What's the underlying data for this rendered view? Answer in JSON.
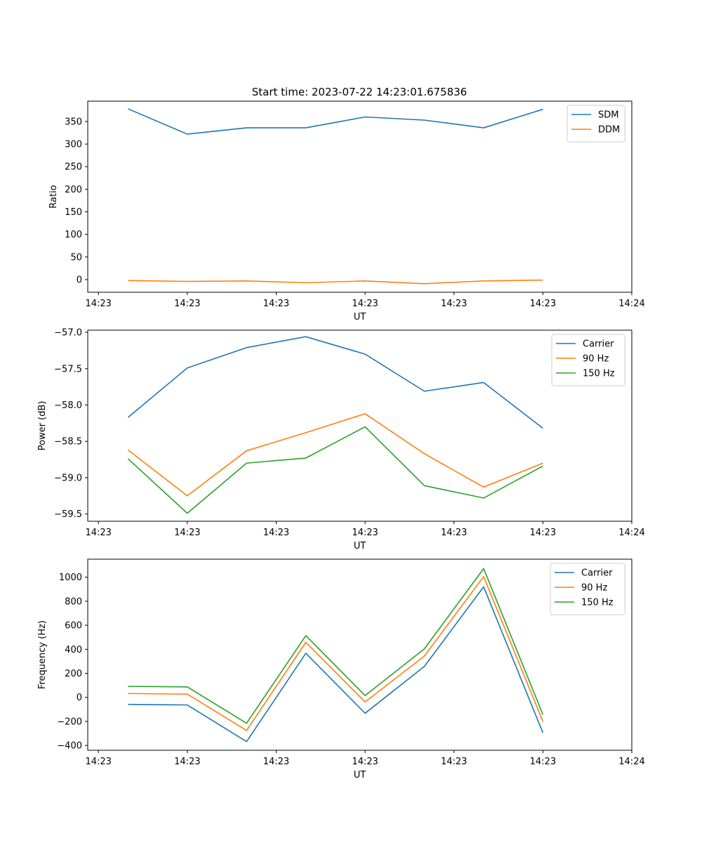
{
  "figure_title": "Start time: 2023-07-22 14:23:01.675836",
  "colors": {
    "series1": "#1f77b4",
    "series2": "#ff7f0e",
    "series3": "#2ca02c"
  },
  "chart_data": [
    {
      "type": "line",
      "title": "Start time: 2023-07-22 14:23:01.675836",
      "xlabel": "UT",
      "ylabel": "Ratio",
      "x_tick_labels": [
        "14:23",
        "14:23",
        "14:23",
        "14:23",
        "14:23",
        "14:23",
        "14:24"
      ],
      "x": [
        1,
        2,
        3,
        4,
        5,
        6,
        7,
        8
      ],
      "xlim": [
        0.32,
        9.5
      ],
      "ylim": [
        -28,
        395
      ],
      "y_ticks": [
        0,
        50,
        100,
        150,
        200,
        250,
        300,
        350
      ],
      "legend": "upper right",
      "series": [
        {
          "name": "SDM",
          "color": "#1f77b4",
          "values": [
            378,
            322,
            336,
            336,
            360,
            353,
            336,
            377
          ]
        },
        {
          "name": "DDM",
          "color": "#ff7f0e",
          "values": [
            -2,
            -4,
            -3,
            -7,
            -3,
            -9,
            -3,
            -1
          ]
        }
      ]
    },
    {
      "type": "line",
      "xlabel": "UT",
      "ylabel": "Power (dB)",
      "x_tick_labels": [
        "14:23",
        "14:23",
        "14:23",
        "14:23",
        "14:23",
        "14:23",
        "14:24"
      ],
      "x": [
        1,
        2,
        3,
        4,
        5,
        6,
        7,
        8
      ],
      "xlim": [
        0.32,
        9.5
      ],
      "ylim": [
        -59.6,
        -56.97
      ],
      "y_ticks": [
        -59.5,
        -59.0,
        -58.5,
        -58.0,
        -57.5,
        -57.0
      ],
      "legend": "upper right",
      "series": [
        {
          "name": "Carrier",
          "color": "#1f77b4",
          "values": [
            -58.17,
            -57.49,
            -57.21,
            -57.06,
            -57.3,
            -57.81,
            -57.69,
            -58.32
          ]
        },
        {
          "name": "90 Hz",
          "color": "#ff7f0e",
          "values": [
            -58.62,
            -59.25,
            -58.63,
            -58.38,
            -58.12,
            -58.67,
            -59.13,
            -58.8
          ]
        },
        {
          "name": "150 Hz",
          "color": "#2ca02c",
          "values": [
            -58.74,
            -59.49,
            -58.8,
            -58.73,
            -58.3,
            -59.11,
            -59.28,
            -58.84
          ]
        }
      ]
    },
    {
      "type": "line",
      "xlabel": "UT",
      "ylabel": "Frequency (Hz)",
      "x_tick_labels": [
        "14:23",
        "14:23",
        "14:23",
        "14:23",
        "14:23",
        "14:23",
        "14:24"
      ],
      "x": [
        1,
        2,
        3,
        4,
        5,
        6,
        7,
        8
      ],
      "xlim": [
        0.32,
        9.5
      ],
      "ylim": [
        -440,
        1150
      ],
      "y_ticks": [
        -400,
        -200,
        0,
        200,
        400,
        600,
        800,
        1000
      ],
      "legend": "upper right",
      "series": [
        {
          "name": "Carrier",
          "color": "#1f77b4",
          "values": [
            -58,
            -63,
            -368,
            367,
            -132,
            258,
            920,
            -295
          ]
        },
        {
          "name": "90 Hz",
          "color": "#ff7f0e",
          "values": [
            32,
            27,
            -275,
            458,
            -38,
            344,
            1005,
            -200
          ]
        },
        {
          "name": "150 Hz",
          "color": "#2ca02c",
          "values": [
            92,
            87,
            -215,
            514,
            15,
            404,
            1072,
            -143
          ]
        }
      ]
    }
  ]
}
